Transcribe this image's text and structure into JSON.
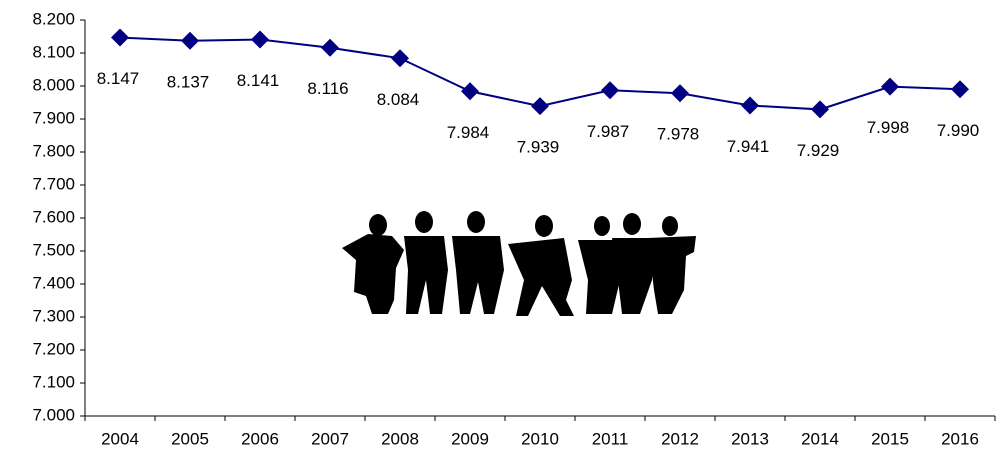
{
  "chart_data": {
    "type": "line",
    "categories": [
      "2004",
      "2005",
      "2006",
      "2007",
      "2008",
      "2009",
      "2010",
      "2011",
      "2012",
      "2013",
      "2014",
      "2015",
      "2016"
    ],
    "values": [
      8.147,
      8.137,
      8.141,
      8.116,
      8.084,
      7.984,
      7.939,
      7.987,
      7.978,
      7.941,
      7.929,
      7.998,
      7.99
    ],
    "value_labels": [
      "8.147",
      "8.137",
      "8.141",
      "8.116",
      "8.084",
      "7.984",
      "7.939",
      "7.987",
      "7.978",
      "7.941",
      "7.929",
      "7.998",
      "7.990"
    ],
    "color": "#000080",
    "ylim": [
      7.0,
      8.2
    ],
    "yticks": [
      {
        "value": 7.0,
        "label": "7.000"
      },
      {
        "value": 7.1,
        "label": "7.100"
      },
      {
        "value": 7.2,
        "label": "7.200"
      },
      {
        "value": 7.3,
        "label": "7.300"
      },
      {
        "value": 7.4,
        "label": "7.400"
      },
      {
        "value": 7.5,
        "label": "7.500"
      },
      {
        "value": 7.6,
        "label": "7.600"
      },
      {
        "value": 7.7,
        "label": "7.700"
      },
      {
        "value": 7.8,
        "label": "7.800"
      },
      {
        "value": 7.9,
        "label": "7.900"
      },
      {
        "value": 8.0,
        "label": "8.000"
      },
      {
        "value": 8.1,
        "label": "8.100"
      },
      {
        "value": 8.2,
        "label": "8.200"
      }
    ],
    "grid": false
  }
}
